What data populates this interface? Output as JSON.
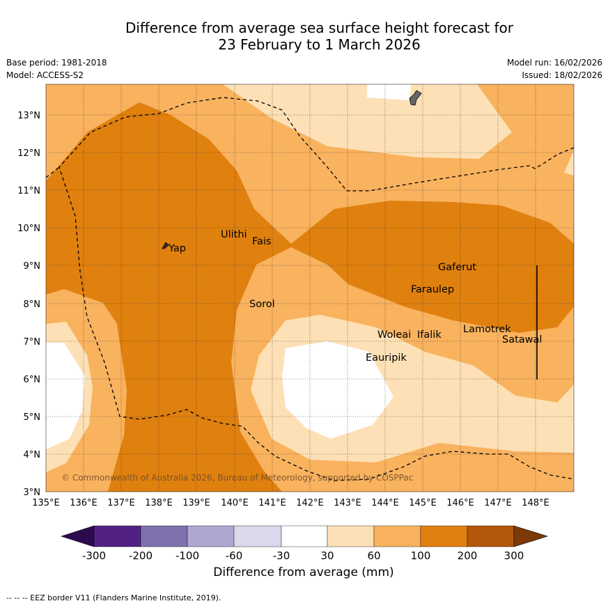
{
  "title_line1": "Difference from average sea surface height forecast for",
  "title_line2": "23 February to 1 March 2026",
  "meta": {
    "base_period": "Base period: 1981-2018",
    "model": "Model: ACCESS-S2",
    "model_run": "Model run: 16/02/2026",
    "issued": "Issued: 18/02/2026"
  },
  "copyright": "© Commonwealth of Australia 2026, Bureau of Meteorology, supported by COSPPac",
  "axes": {
    "lon_ticks": [
      "135°E",
      "136°E",
      "137°E",
      "138°E",
      "139°E",
      "140°E",
      "141°E",
      "142°E",
      "143°E",
      "144°E",
      "145°E",
      "146°E",
      "147°E",
      "148°E"
    ],
    "lat_ticks": [
      "3°N",
      "4°N",
      "5°N",
      "6°N",
      "7°N",
      "8°N",
      "9°N",
      "10°N",
      "11°N",
      "12°N",
      "13°N"
    ]
  },
  "places": [
    "Yap",
    "Ulithi",
    "Fais",
    "Sorol",
    "Gaferut",
    "Faraulep",
    "Woleai",
    "Ifalik",
    "Lamotrek",
    "Satawal",
    "Eauripik"
  ],
  "colorbar": {
    "title": "Difference from average (mm)",
    "tick_labels": [
      "-300",
      "-200",
      "-100",
      "-60",
      "-30",
      "30",
      "60",
      "100",
      "200",
      "300"
    ],
    "colors": [
      "#2d0a4e",
      "#512283",
      "#7f71ad",
      "#aea7d2",
      "#d9d9eb",
      "#ffffff",
      "#fde0b5",
      "#f9b25e",
      "#e0800f",
      "#b3570a",
      "#7d3a06"
    ]
  },
  "legend_note": "--  --  -- EEZ border V11 (Flanders Marine Institute, 2019)."
}
